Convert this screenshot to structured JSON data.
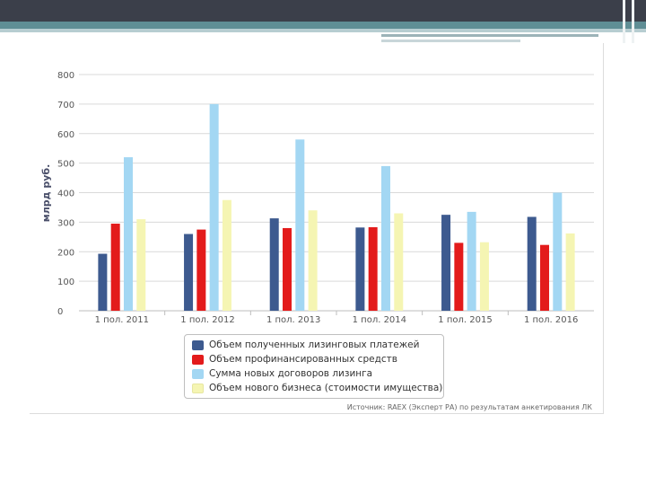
{
  "chart_data": {
    "type": "bar",
    "categories": [
      "1 пол. 2011",
      "1 пол. 2012",
      "1 пол. 2013",
      "1 пол. 2014",
      "1 пол. 2015",
      "1 пол. 2016"
    ],
    "ylabel": "млрд руб.",
    "ylim": [
      0,
      800
    ],
    "yticks": [
      0,
      100,
      200,
      300,
      400,
      500,
      600,
      700,
      800
    ],
    "ytick_labels": [
      "0",
      "100",
      "200",
      "300",
      "400",
      "500",
      "600",
      "700",
      "800"
    ],
    "grid": true,
    "series": [
      {
        "name": "Объем полученных лизинговых платежей",
        "color": "#3d5a8f",
        "values": [
          193,
          260,
          313,
          282,
          325,
          318
        ]
      },
      {
        "name": "Объем профинансированных средств",
        "color": "#e31b1b",
        "values": [
          295,
          275,
          280,
          283,
          230,
          223
        ]
      },
      {
        "name": "Сумма новых договоров лизинга",
        "color": "#a3d7f3",
        "values": [
          520,
          700,
          580,
          490,
          335,
          400
        ]
      },
      {
        "name": "Объем нового бизнеса (стоимости имущества)",
        "color": "#f5f5b3",
        "values": [
          310,
          375,
          340,
          330,
          232,
          262
        ]
      }
    ],
    "legend_position": "bottom-center",
    "source": "Источник: RAEX (Эксперт РА) по результатам анкетирования ЛК"
  }
}
